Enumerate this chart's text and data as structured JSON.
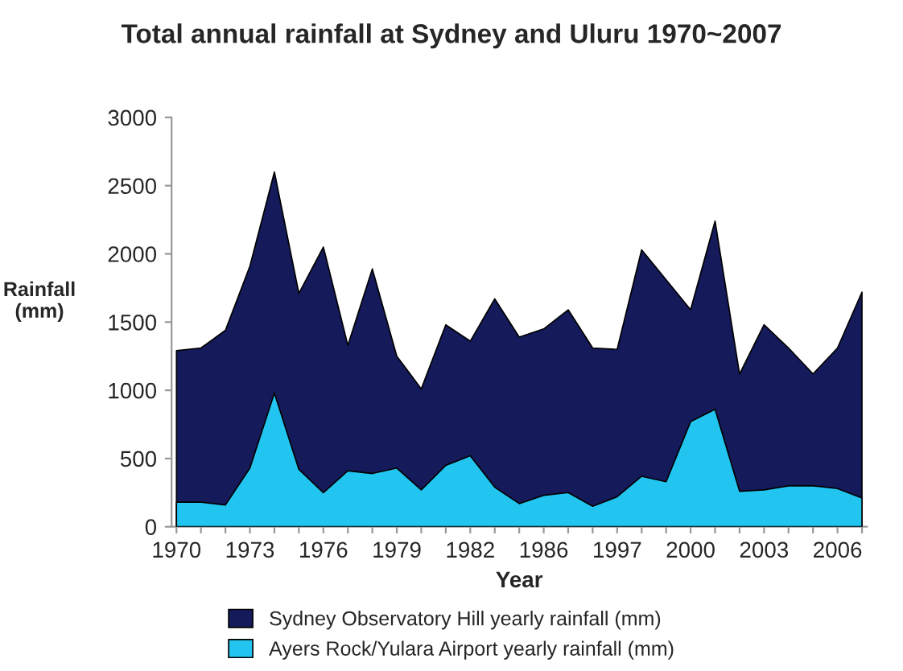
{
  "chart_data": {
    "type": "area",
    "title": "Total annual rainfall at Sydney and Uluru 1970~2007",
    "xlabel": "Year",
    "ylabel": "Rainfall\n(mm)",
    "categories": [
      "1970",
      null,
      null,
      "1973",
      null,
      null,
      "1976",
      null,
      null,
      "1979",
      null,
      null,
      "1982",
      null,
      null,
      "1986",
      null,
      null,
      "1997",
      null,
      null,
      "2000",
      null,
      null,
      "2003",
      null,
      null,
      "2006",
      null
    ],
    "series": [
      {
        "name": "Sydney Observatory Hill yearly rainfall (mm)",
        "color": "#141a5a",
        "values": [
          1290,
          1310,
          1440,
          1910,
          2600,
          1710,
          2050,
          1330,
          1890,
          1250,
          1010,
          1480,
          1360,
          1670,
          1390,
          1450,
          1590,
          1310,
          1300,
          2030,
          1810,
          1590,
          2240,
          1120,
          1480,
          1310,
          1120,
          1310,
          1720
        ]
      },
      {
        "name": "Ayers Rock/Yulara Airport yearly rainfall (mm)",
        "color": "#22c4f0",
        "values": [
          180,
          180,
          160,
          430,
          980,
          420,
          250,
          410,
          390,
          430,
          270,
          450,
          520,
          290,
          170,
          230,
          250,
          150,
          220,
          370,
          330,
          770,
          860,
          260,
          270,
          300,
          300,
          280,
          210
        ]
      }
    ],
    "ylim": [
      0,
      3000
    ],
    "yticks": [
      0,
      500,
      1000,
      1500,
      2000,
      2500,
      3000
    ],
    "grid": false,
    "legend": "bottom"
  }
}
